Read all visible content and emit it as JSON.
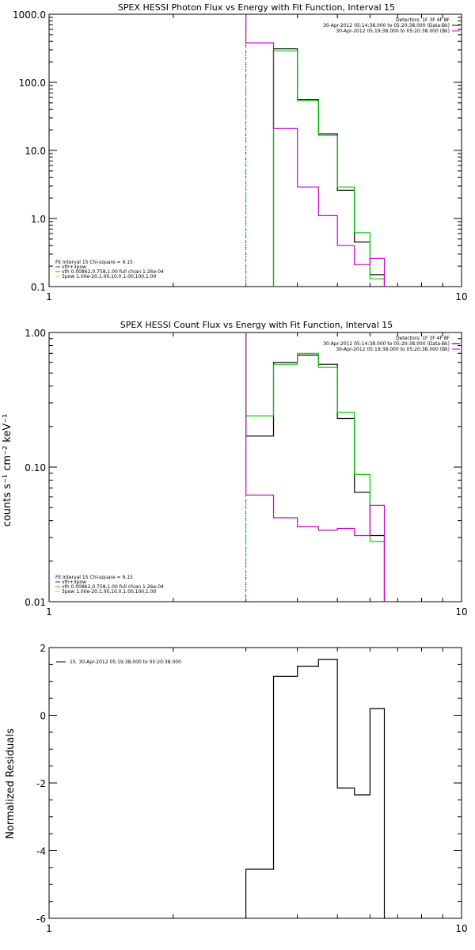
{
  "chart_data": [
    {
      "type": "line",
      "title": "SPEX HESSI Photon Flux vs Energy with Fit Function, Interval 15",
      "xlabel": "",
      "ylabel": "",
      "xscale": "log",
      "yscale": "log",
      "xlim": [
        1,
        10
      ],
      "ylim": [
        0.1,
        1000
      ],
      "xticks": [
        {
          "v": 1,
          "label": "1"
        },
        {
          "v": 10,
          "label": "10"
        }
      ],
      "yticks": [
        {
          "v": 0.1,
          "label": "0.1"
        },
        {
          "v": 1,
          "label": "1.0"
        },
        {
          "v": 10,
          "label": "10.0"
        },
        {
          "v": 100,
          "label": "100.0"
        },
        {
          "v": 1000,
          "label": "1000.0"
        }
      ],
      "vline_x": 3,
      "edges": [
        3,
        3.5,
        4,
        4.5,
        5,
        5.5,
        6,
        6.5,
        7
      ],
      "series": [
        {
          "color": "#000000",
          "values": [
            null,
            310,
            56,
            17.5,
            2.6,
            0.45,
            0.15,
            null
          ]
        },
        {
          "color": "#00cc00",
          "values": [
            null,
            290,
            54,
            16.5,
            2.9,
            0.62,
            0.13,
            null
          ]
        },
        {
          "color": "#cc00cc",
          "values": [
            380,
            21,
            2.9,
            1.1,
            0.4,
            0.21,
            0.26,
            null
          ]
        }
      ],
      "legend": {
        "position": "top-right",
        "lines": [
          "Detectors: 1F 3F 4F 8F",
          "30-Apr-2012 05:14:38.000 to 05:20:38.000 (Data-Bk)",
          "30-Apr-2012 05:19:38.000 to 05:20:38.000 (Bk)"
        ],
        "colors": [
          "#000000",
          "#000000",
          "#cc00cc"
        ]
      },
      "fit_legend": {
        "position": "bottom-left",
        "header": "Fit Interval 15   Chi-square = 9.15",
        "items": [
          {
            "label": "vth+3pow",
            "color": "#cc0000"
          },
          {
            "label": "vth 0.00862,0.758,1.00  full chian 1.26e-04",
            "color": "#00cc00"
          },
          {
            "label": "3pow 1.00e-20,1.00,10.0,1.00,100,1.00",
            "color": "#cccc00"
          }
        ]
      }
    },
    {
      "type": "line",
      "title": "SPEX HESSI Count Flux vs Energy with Fit Function, Interval 15",
      "xlabel": "",
      "ylabel": "counts s⁻¹ cm⁻² keV⁻¹",
      "xscale": "log",
      "yscale": "log",
      "xlim": [
        1,
        10
      ],
      "ylim": [
        0.01,
        1
      ],
      "xticks": [
        {
          "v": 1,
          "label": "1"
        },
        {
          "v": 10,
          "label": "10"
        }
      ],
      "yticks": [
        {
          "v": 0.01,
          "label": "0.01"
        },
        {
          "v": 0.1,
          "label": "0.10"
        },
        {
          "v": 1,
          "label": "1.00"
        }
      ],
      "vline_x": 3,
      "edges": [
        3,
        3.5,
        4,
        4.5,
        5,
        5.5,
        6,
        6.5,
        7
      ],
      "series": [
        {
          "color": "#000000",
          "values": [
            0.17,
            0.6,
            0.68,
            0.58,
            0.23,
            0.065,
            0.031,
            null
          ]
        },
        {
          "color": "#00cc00",
          "values": [
            0.24,
            0.58,
            0.7,
            0.55,
            0.255,
            0.088,
            0.028,
            null
          ]
        },
        {
          "color": "#cc00cc",
          "values": [
            0.062,
            0.042,
            0.036,
            0.034,
            0.035,
            0.031,
            0.052,
            null
          ]
        }
      ],
      "legend": {
        "position": "top-right",
        "lines": [
          "Detectors: 1F 3F 4F 8F",
          "30-Apr-2012 05:14:38.000 to 05:20:38.000 (Data-Bk)",
          "30-Apr-2012 05:19:38.000 to 05:20:38.000 (Bk)"
        ],
        "colors": [
          "#000000",
          "#000000",
          "#cc00cc"
        ]
      },
      "fit_legend": {
        "position": "bottom-left",
        "header": "Fit Interval 15   Chi-square = 9.15",
        "items": [
          {
            "label": "vth+3pow",
            "color": "#cc0000"
          },
          {
            "label": "vth 0.00862,0.758,1.00  full chian 1.26e-04",
            "color": "#00cc00"
          },
          {
            "label": "3pow 1.00e-20,1.00,10.0,1.00,100,1.00",
            "color": "#cccc00"
          }
        ]
      }
    },
    {
      "type": "line",
      "title": "",
      "xlabel": "",
      "ylabel": "Normalized Residuals",
      "xscale": "log",
      "yscale": "linear",
      "xlim": [
        1,
        10
      ],
      "ylim": [
        -6,
        2
      ],
      "xticks": [
        {
          "v": 1,
          "label": "1"
        },
        {
          "v": 10,
          "label": "10"
        }
      ],
      "yticks": [
        {
          "v": -6,
          "label": "-6"
        },
        {
          "v": -4,
          "label": "-4"
        },
        {
          "v": -2,
          "label": "-2"
        },
        {
          "v": 0,
          "label": "0"
        },
        {
          "v": 2,
          "label": "2"
        }
      ],
      "edges": [
        3,
        3.5,
        4,
        4.5,
        5,
        5.5,
        6,
        6.5
      ],
      "series": [
        {
          "color": "#000000",
          "values": [
            -4.55,
            1.15,
            1.45,
            1.65,
            -2.15,
            -2.35,
            0.2
          ]
        }
      ],
      "legend": {
        "position": "top-left",
        "items": [
          {
            "label": "15. 30-Apr-2012 05:19:38.000 to 05:20:38.000",
            "color": "#000000"
          }
        ]
      }
    }
  ]
}
